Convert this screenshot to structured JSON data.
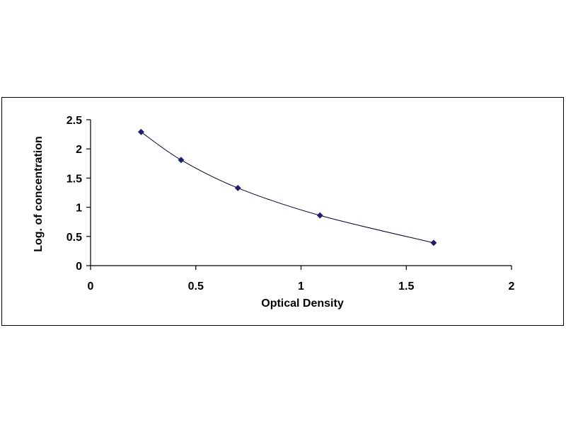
{
  "chart_data": {
    "type": "scatter",
    "title": "",
    "xlabel": "Optical Density",
    "ylabel": "Log. of concentration",
    "xlim": [
      0,
      2
    ],
    "ylim": [
      0,
      2.5
    ],
    "x_ticks": [
      "0",
      "0.5",
      "1",
      "1.5",
      "2"
    ],
    "y_ticks": [
      "0",
      "0.5",
      "1",
      "1.5",
      "2",
      "2.5"
    ],
    "x_tick_values": [
      0,
      0.5,
      1,
      1.5,
      2
    ],
    "y_tick_values": [
      0,
      0.5,
      1,
      1.5,
      2,
      2.5
    ],
    "grid": false,
    "legend": "none",
    "trendline": "smooth",
    "series": [
      {
        "x": [
          0.24,
          0.43,
          0.7,
          1.09,
          1.63
        ],
        "y": [
          2.29,
          1.81,
          1.33,
          0.86,
          0.39
        ],
        "color": "#1f1f6e"
      }
    ]
  }
}
